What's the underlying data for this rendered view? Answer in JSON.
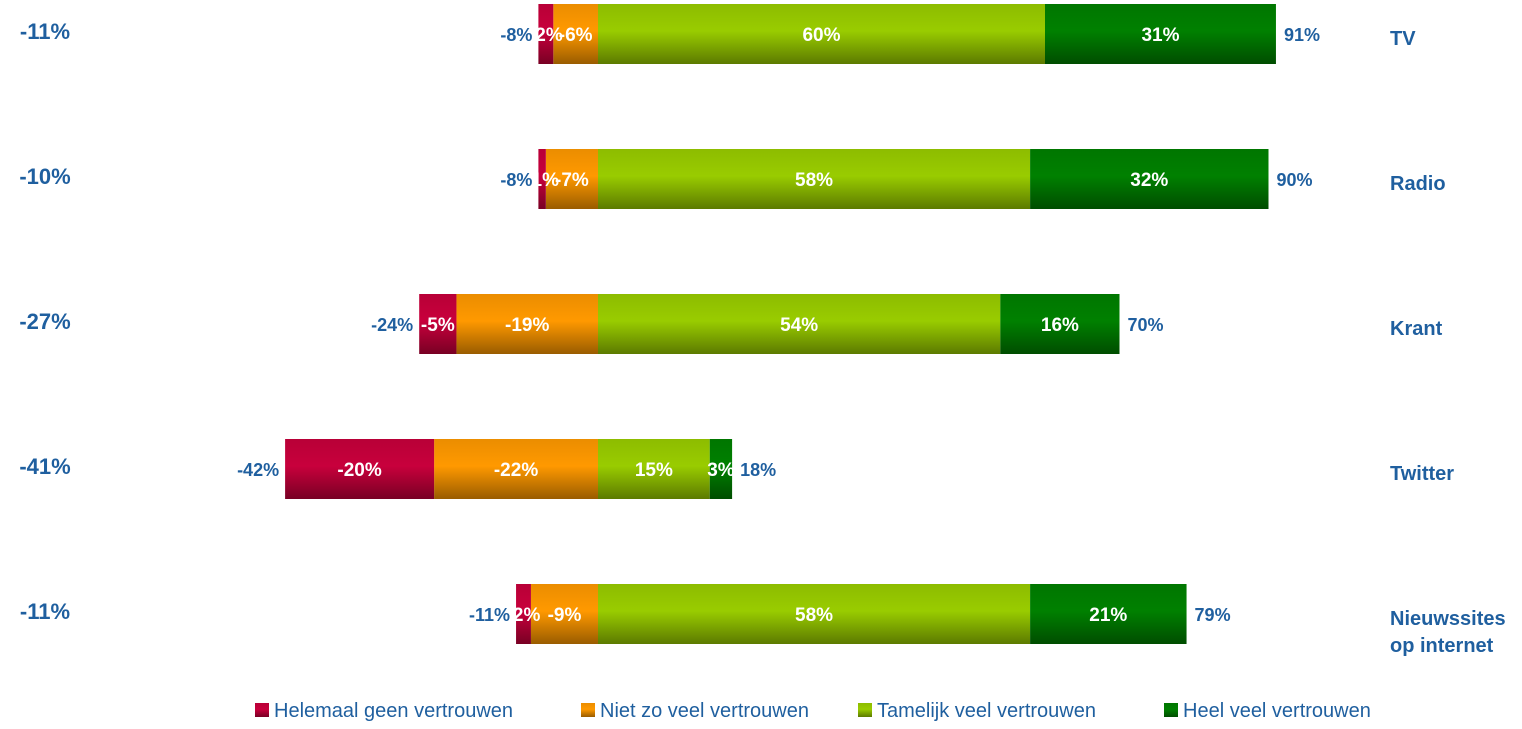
{
  "chart_data": {
    "type": "bar",
    "stacked": true,
    "orientation": "horizontal",
    "diverging": true,
    "categories": [
      "TV",
      "Radio",
      "Krant",
      "Twitter",
      "Nieuwssites op internet"
    ],
    "category_lines": [
      [
        "TV"
      ],
      [
        "Radio"
      ],
      [
        "Krant"
      ],
      [
        "Twitter"
      ],
      [
        "Nieuwssites",
        "op internet"
      ]
    ],
    "series": [
      {
        "name": "Helemaal geen vertrouwen",
        "values": [
          -2,
          -1,
          -5,
          -20,
          -2
        ],
        "labels": [
          "-2%",
          "-1%",
          "-5%",
          "-20%",
          "-2%"
        ],
        "color": "#c8003c",
        "side": "negative"
      },
      {
        "name": "Niet zo veel vertrouwen",
        "values": [
          -6,
          -7,
          -19,
          -22,
          -9
        ],
        "labels": [
          "-6%",
          "-7%",
          "-19%",
          "-22%",
          "-9%"
        ],
        "color": "#ff9900",
        "side": "negative"
      },
      {
        "name": "Tamelijk veel vertrouwen",
        "values": [
          60,
          58,
          54,
          15,
          58
        ],
        "labels": [
          "60%",
          "58%",
          "54%",
          "15%",
          "58%"
        ],
        "color": "#99cc00",
        "side": "positive"
      },
      {
        "name": "Heel veel vertrouwen",
        "values": [
          31,
          32,
          16,
          3,
          21
        ],
        "labels": [
          "31%",
          "32%",
          "16%",
          "3%",
          "21%"
        ],
        "color": "#008000",
        "side": "positive"
      }
    ],
    "negative_totals": [
      "-8%",
      "-8%",
      "-24%",
      "-42%",
      "-11%"
    ],
    "positive_totals": [
      "91%",
      "90%",
      "70%",
      "18%",
      "79%"
    ],
    "net_values": [
      "-11%",
      "-10%",
      "-27%",
      "-41%",
      "-11%"
    ],
    "legend_position": "bottom",
    "grid": false,
    "xlim": [
      -42,
      91
    ]
  }
}
